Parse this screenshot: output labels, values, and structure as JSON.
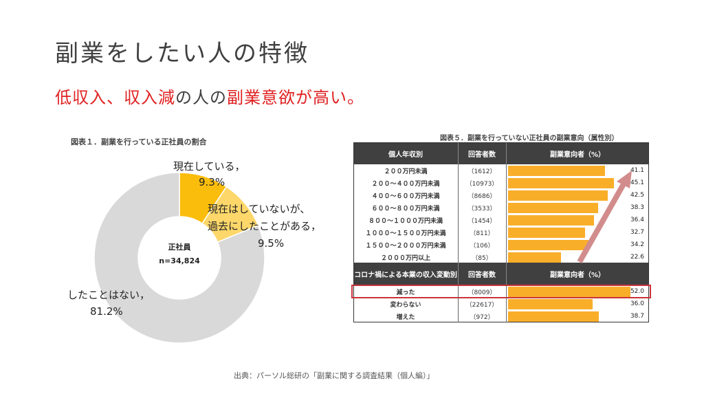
{
  "title": "副業をしたい人の特徴",
  "subtitle": {
    "part1": "低収入、収入減",
    "part2": "の人の",
    "part3": "副業意欲が高い。"
  },
  "source": "出典：パーソル総研の「副業に関する調査結果（個人編）」",
  "colors": {
    "accent_red": "#e02020",
    "bar_orange": "#f9ae2a",
    "donut_dark": "#fbbd0c",
    "donut_light": "#fdd76a",
    "donut_gray": "#d9d9d9",
    "header_dark": "#404040",
    "highlight": "#c9333a",
    "arrow": "#d28c8c"
  },
  "chart_data": [
    {
      "type": "pie",
      "donut": true,
      "title": "図表１．副業を行っている正社員の割合",
      "center_label": [
        "正社員",
        "n=34,824"
      ],
      "slices": [
        {
          "label": "現在している，",
          "value": 9.3,
          "display": "9.3%"
        },
        {
          "label": "現在はしていないが、過去にしたことがある，",
          "label_lines": [
            "現在はしていないが、",
            "過去にしたことがある，"
          ],
          "value": 9.5,
          "display": "9.5%"
        },
        {
          "label": "したことはない，",
          "value": 81.2,
          "display": "81.2%"
        }
      ]
    },
    {
      "type": "bar",
      "orientation": "horizontal",
      "title": "図表５．副業を行っていない正社員の副業意向（属性別）",
      "xlim": [
        0,
        52
      ],
      "groups": [
        {
          "header": [
            "個人年収別",
            "回答者数",
            "副業意向者（%）"
          ],
          "rows": [
            {
              "category": "２００万円未満",
              "n": "（1612）",
              "value": 41.1,
              "display": "41.1"
            },
            {
              "category": "２００～４００万円未満",
              "n": "（10973）",
              "value": 45.1,
              "display": "45.1"
            },
            {
              "category": "４００～６００万円未満",
              "n": "（8686）",
              "value": 42.5,
              "display": "42.5"
            },
            {
              "category": "６００～８００万円未満",
              "n": "（3533）",
              "value": 38.3,
              "display": "38.3"
            },
            {
              "category": "８００～１０００万円未満",
              "n": "（1454）",
              "value": 36.4,
              "display": "36.4"
            },
            {
              "category": "１０００～１５００万円未満",
              "n": "（811）",
              "value": 32.7,
              "display": "32.7"
            },
            {
              "category": "１５００～２０００万円未満",
              "n": "（106）",
              "value": 34.2,
              "display": "34.2"
            },
            {
              "category": "２０００万円以上",
              "n": "（85）",
              "value": 22.6,
              "display": "22.6"
            }
          ]
        },
        {
          "header": [
            "コロナ禍による本業の収入変動別",
            "回答者数",
            "副業意向者（%）"
          ],
          "rows": [
            {
              "category": "減った",
              "n": "（8009）",
              "value": 52.0,
              "display": "52.0",
              "highlight": true
            },
            {
              "category": "変わらない",
              "n": "（22617）",
              "value": 36.0,
              "display": "36.0"
            },
            {
              "category": "増えた",
              "n": "（972）",
              "value": 38.7,
              "display": "38.7"
            }
          ]
        }
      ]
    }
  ]
}
